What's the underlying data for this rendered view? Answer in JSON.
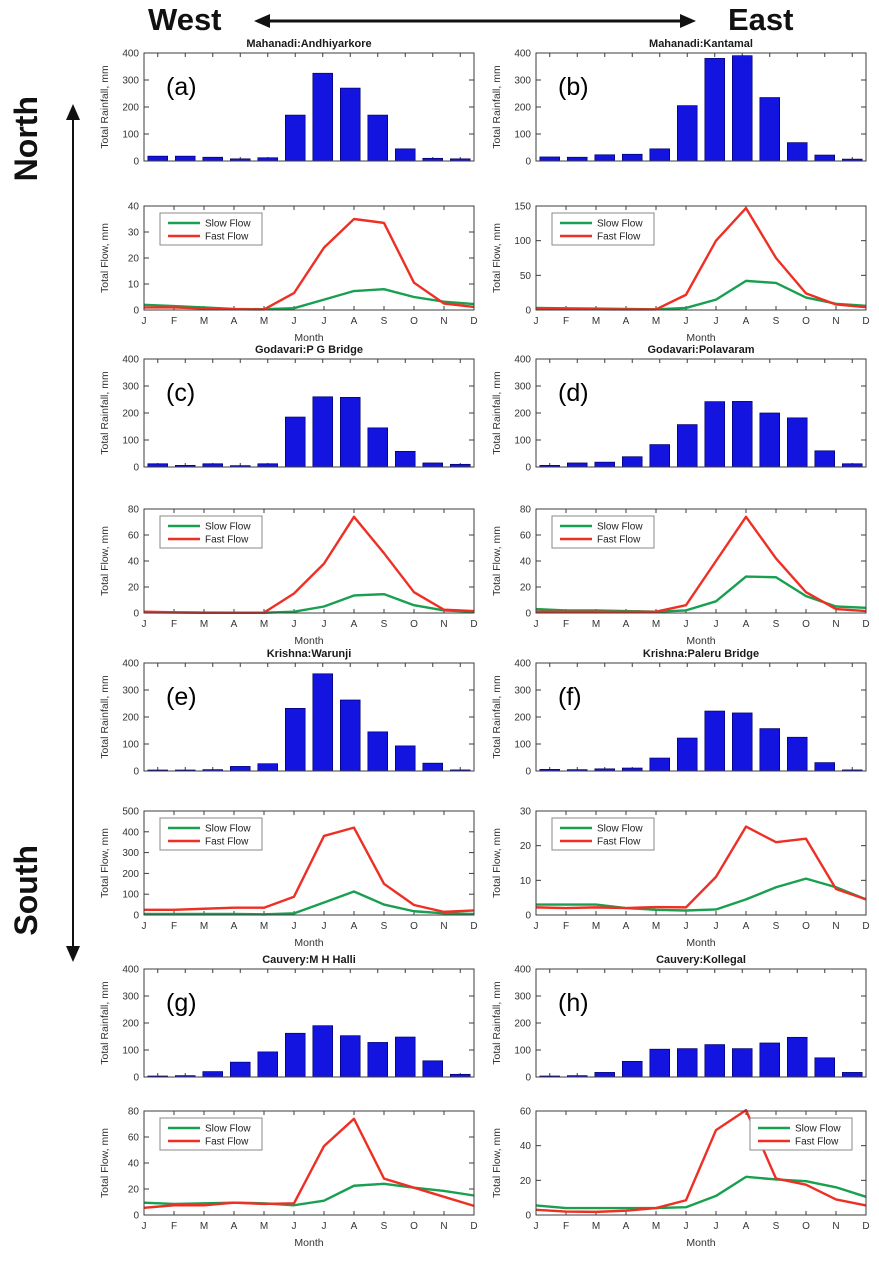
{
  "orientation": {
    "west": "West",
    "east": "East",
    "north": "North",
    "south": "South"
  },
  "colors": {
    "bar": "#1414e0",
    "bar_edge": "#00006a",
    "slow_flow": "#18a050",
    "fast_flow": "#ee2f24",
    "axis": "#3c3c3c",
    "text": "#222222"
  },
  "months": [
    "J",
    "F",
    "M",
    "A",
    "M",
    "J",
    "J",
    "A",
    "S",
    "O",
    "N",
    "D"
  ],
  "xlabel": "Month",
  "rain_ylabel": "Total Rainfall, mm",
  "flow_ylabel": "Total Flow, mm",
  "legend": {
    "slow": "Slow Flow",
    "fast": "Fast Flow"
  },
  "chart_data": [
    {
      "id": "a",
      "panel": "(a)",
      "title": "Mahanadi:Andhiyarkore",
      "rainfall": {
        "type": "bar",
        "ylim": [
          0,
          400
        ],
        "yticks": [
          0,
          100,
          200,
          300,
          400
        ],
        "values": [
          18,
          18,
          14,
          8,
          12,
          170,
          325,
          270,
          170,
          45,
          10,
          8
        ]
      },
      "flow": {
        "type": "line",
        "ylim": [
          0,
          40
        ],
        "yticks": [
          0,
          10,
          20,
          30,
          40
        ],
        "legend_pos": "left",
        "slow": [
          2,
          1.5,
          1,
          0.4,
          0.3,
          0.7,
          4,
          7.3,
          8,
          5,
          3.2,
          2.3
        ],
        "fast": [
          1,
          1,
          0.6,
          0.3,
          0.2,
          6.5,
          24,
          35,
          33.5,
          10.5,
          2.5,
          1.2
        ]
      }
    },
    {
      "id": "b",
      "panel": "(b)",
      "title": "Mahanadi:Kantamal",
      "rainfall": {
        "type": "bar",
        "ylim": [
          0,
          400
        ],
        "yticks": [
          0,
          100,
          200,
          300,
          400
        ],
        "values": [
          15,
          14,
          23,
          25,
          45,
          205,
          380,
          390,
          235,
          68,
          22,
          7
        ]
      },
      "flow": {
        "type": "line",
        "ylim": [
          0,
          150
        ],
        "yticks": [
          0,
          50,
          100,
          150
        ],
        "legend_pos": "left",
        "slow": [
          3,
          2.5,
          2,
          1.5,
          1,
          3,
          15,
          42,
          39,
          18,
          9,
          6
        ],
        "fast": [
          2,
          1.5,
          1,
          0.8,
          0.8,
          22,
          100,
          147,
          75,
          24,
          8,
          4
        ]
      }
    },
    {
      "id": "c",
      "panel": "(c)",
      "title": "Godavari:P G Bridge",
      "rainfall": {
        "type": "bar",
        "ylim": [
          0,
          400
        ],
        "yticks": [
          0,
          100,
          200,
          300,
          400
        ],
        "values": [
          12,
          6,
          12,
          5,
          12,
          185,
          260,
          258,
          145,
          58,
          15,
          10
        ]
      },
      "flow": {
        "type": "line",
        "ylim": [
          0,
          80
        ],
        "yticks": [
          0,
          20,
          40,
          60,
          80
        ],
        "legend_pos": "left",
        "slow": [
          0.5,
          0.3,
          0.2,
          0.2,
          0.2,
          1,
          5,
          13.5,
          14.5,
          6,
          2,
          1
        ],
        "fast": [
          1,
          0.5,
          0.3,
          0.2,
          0.3,
          15,
          38,
          74,
          46,
          16,
          2.5,
          1.5
        ]
      }
    },
    {
      "id": "d",
      "panel": "(d)",
      "title": "Godavari:Polavaram",
      "rainfall": {
        "type": "bar",
        "ylim": [
          0,
          400
        ],
        "yticks": [
          0,
          100,
          200,
          300,
          400
        ],
        "values": [
          6,
          15,
          18,
          38,
          83,
          157,
          242,
          243,
          200,
          182,
          60,
          12
        ]
      },
      "flow": {
        "type": "line",
        "ylim": [
          0,
          80
        ],
        "yticks": [
          0,
          20,
          40,
          60,
          80
        ],
        "legend_pos": "left",
        "slow": [
          3,
          2,
          2,
          1.5,
          1,
          2,
          9,
          28,
          27.5,
          13,
          5,
          4
        ],
        "fast": [
          1,
          1,
          1,
          0.8,
          1,
          6,
          40,
          74,
          42,
          16,
          3,
          1.5
        ]
      }
    },
    {
      "id": "e",
      "panel": "(e)",
      "title": "Krishna:Warunji",
      "rainfall": {
        "type": "bar",
        "ylim": [
          0,
          400
        ],
        "yticks": [
          0,
          100,
          200,
          300,
          400
        ],
        "values": [
          2,
          1,
          5,
          17,
          27,
          232,
          360,
          263,
          145,
          93,
          29,
          4
        ]
      },
      "flow": {
        "type": "line",
        "ylim": [
          0,
          500
        ],
        "yticks": [
          0,
          100,
          200,
          300,
          400,
          500
        ],
        "legend_pos": "left",
        "slow": [
          5,
          5,
          5,
          5,
          3,
          8,
          60,
          113,
          50,
          18,
          8,
          5
        ],
        "fast": [
          25,
          25,
          30,
          35,
          35,
          88,
          380,
          420,
          150,
          48,
          15,
          22
        ]
      }
    },
    {
      "id": "f",
      "panel": "(f)",
      "title": "Krishna:Paleru Bridge",
      "rainfall": {
        "type": "bar",
        "ylim": [
          0,
          400
        ],
        "yticks": [
          0,
          100,
          200,
          300,
          400
        ],
        "values": [
          6,
          5,
          8,
          11,
          48,
          122,
          222,
          215,
          157,
          125,
          31,
          4
        ]
      },
      "flow": {
        "type": "line",
        "ylim": [
          0,
          30
        ],
        "yticks": [
          0,
          10,
          20,
          30
        ],
        "legend_pos": "left",
        "slow": [
          3,
          3,
          3,
          2,
          1.5,
          1.3,
          1.6,
          4.5,
          8,
          10.5,
          8,
          4.5
        ],
        "fast": [
          2.2,
          2,
          2.2,
          2,
          2.3,
          2.2,
          11,
          25.5,
          21,
          22,
          7.5,
          4.5
        ]
      }
    },
    {
      "id": "g",
      "panel": "(g)",
      "title": "Cauvery:M H Halli",
      "rainfall": {
        "type": "bar",
        "ylim": [
          0,
          400
        ],
        "yticks": [
          0,
          100,
          200,
          300,
          400
        ],
        "values": [
          3,
          5,
          20,
          55,
          93,
          162,
          190,
          153,
          128,
          148,
          60,
          10
        ]
      },
      "flow": {
        "type": "line",
        "ylim": [
          0,
          80
        ],
        "yticks": [
          0,
          20,
          40,
          60,
          80
        ],
        "legend_pos": "left",
        "slow": [
          9.5,
          8.5,
          9,
          9.5,
          9,
          7.5,
          11,
          22.5,
          24,
          21,
          18.5,
          15
        ],
        "fast": [
          5.5,
          7.5,
          7.5,
          9.5,
          8.5,
          9,
          53,
          74,
          28,
          21,
          14,
          7
        ]
      }
    },
    {
      "id": "h",
      "panel": "(h)",
      "title": "Cauvery:Kollegal",
      "rainfall": {
        "type": "bar",
        "ylim": [
          0,
          400
        ],
        "yticks": [
          0,
          100,
          200,
          300,
          400
        ],
        "values": [
          3,
          5,
          17,
          58,
          103,
          105,
          120,
          105,
          126,
          147,
          71,
          17
        ]
      },
      "flow": {
        "type": "line",
        "ylim": [
          0,
          60
        ],
        "yticks": [
          0,
          20,
          40,
          60
        ],
        "legend_pos": "right",
        "slow": [
          5.5,
          4,
          4,
          4,
          4,
          4.5,
          11,
          22,
          20.5,
          19.5,
          16,
          10.5
        ],
        "fast": [
          3,
          2,
          1.8,
          2.5,
          4,
          8.5,
          49,
          60.5,
          21,
          17.5,
          9,
          5.5
        ]
      }
    }
  ]
}
